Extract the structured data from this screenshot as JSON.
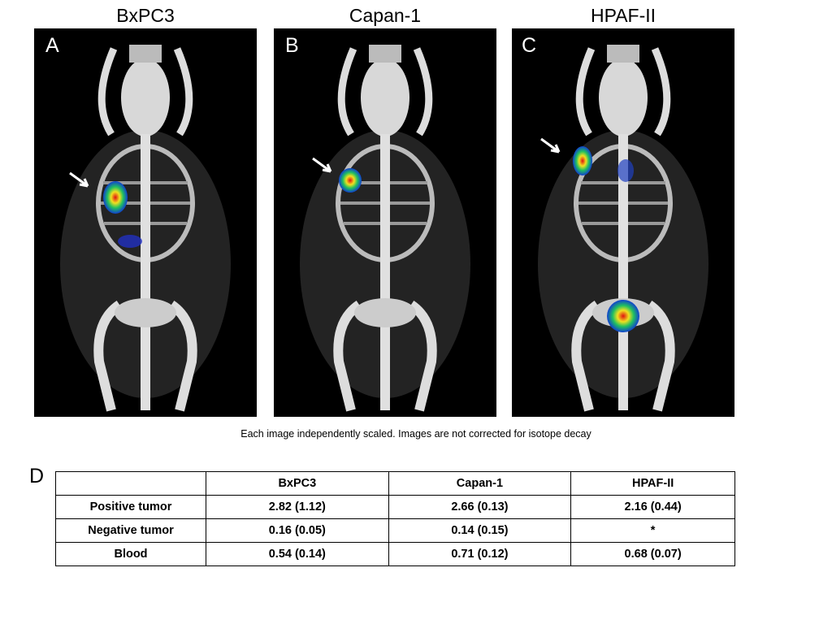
{
  "panels": [
    {
      "title": "BxPC3",
      "letter": "A"
    },
    {
      "title": "Capan-1",
      "letter": "B"
    },
    {
      "title": "HPAF-II",
      "letter": "C"
    }
  ],
  "caption": "Each image independently scaled.  Images are not corrected for isotope decay",
  "table": {
    "letter": "D",
    "header": [
      "",
      "BxPC3",
      "Capan-1",
      "HPAF-II"
    ],
    "rows": [
      [
        "Positive tumor",
        "2.82 (1.12)",
        "2.66 (0.13)",
        "2.16 (0.44)"
      ],
      [
        "Negative tumor",
        "0.16 (0.05)",
        "0.14 (0.15)",
        "*"
      ],
      [
        "Blood",
        "0.54 (0.14)",
        "0.71 (0.12)",
        "0.68 (0.07)"
      ]
    ]
  }
}
